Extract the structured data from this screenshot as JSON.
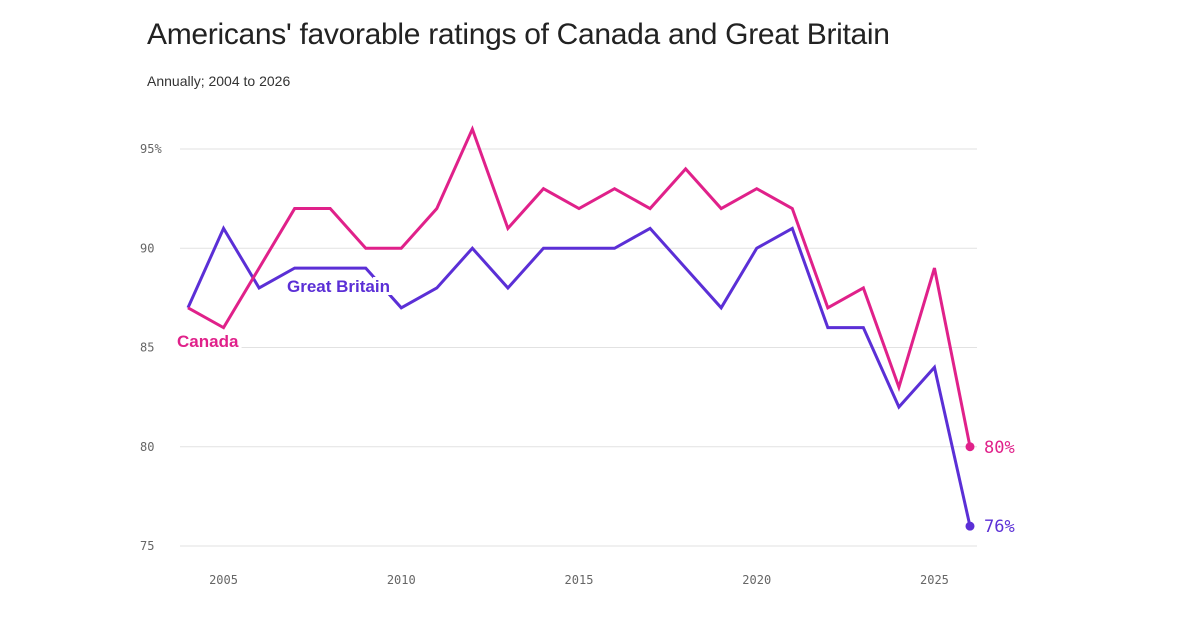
{
  "title": "Americans' favorable ratings of Canada and Great Britain",
  "subtitle": "Annually; 2004 to 2026",
  "chart_data": {
    "type": "line",
    "title": "Americans' favorable ratings of Canada and Great Britain",
    "subtitle": "Annually; 2004 to 2026",
    "x": [
      2004,
      2005,
      2006,
      2007,
      2008,
      2009,
      2010,
      2011,
      2012,
      2013,
      2014,
      2015,
      2016,
      2017,
      2018,
      2019,
      2020,
      2021,
      2022,
      2023,
      2024,
      2025,
      2026
    ],
    "series": [
      {
        "name": "Canada",
        "color": "#e0218a",
        "end_label": "80%",
        "values": [
          87,
          86,
          89,
          92,
          92,
          90,
          90,
          92,
          96,
          91,
          93,
          92,
          93,
          92,
          94,
          92,
          93,
          92,
          87,
          88,
          83,
          89,
          80
        ]
      },
      {
        "name": "Great Britain",
        "color": "#5b2fd6",
        "end_label": "76%",
        "values": [
          87,
          91,
          88,
          89,
          89,
          89,
          87,
          88,
          90,
          88,
          90,
          90,
          90,
          91,
          89,
          87,
          90,
          91,
          86,
          86,
          82,
          84,
          76
        ]
      }
    ],
    "xlim": [
      2004,
      2026
    ],
    "ylim": [
      75,
      95
    ],
    "x_ticks": [
      2005,
      2010,
      2015,
      2020,
      2025
    ],
    "y_ticks": [
      {
        "value": 75,
        "label": "75"
      },
      {
        "value": 80,
        "label": "80"
      },
      {
        "value": 85,
        "label": "85"
      },
      {
        "value": 90,
        "label": "90"
      },
      {
        "value": 95,
        "label": "95%"
      }
    ],
    "grid": "horizontal",
    "legend": "inline labels"
  }
}
